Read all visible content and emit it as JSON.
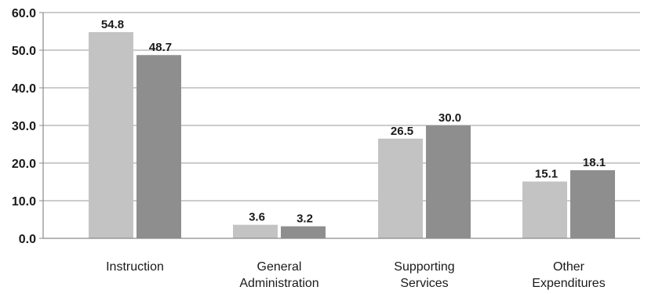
{
  "colors": {
    "series_a": "#c3c3c3",
    "series_b": "#8e8e8e",
    "grid": "#9a9a9a",
    "axis": "#8a8a8a",
    "text": "#1a1a1a"
  },
  "chart_data": {
    "type": "bar",
    "title": "",
    "xlabel": "",
    "ylabel": "",
    "categories": [
      [
        "Instruction"
      ],
      [
        "General",
        "Administration"
      ],
      [
        "Supporting",
        "Services"
      ],
      [
        "Other",
        "Expenditures"
      ]
    ],
    "series": [
      {
        "values": [
          54.8,
          3.6,
          26.5,
          15.1
        ]
      },
      {
        "values": [
          48.7,
          3.2,
          30.0,
          18.1
        ]
      }
    ],
    "data_labels_a": [
      "54.8",
      "3.6",
      "26.5",
      "15.1"
    ],
    "data_labels_b": [
      "48.7",
      "3.2",
      "30.0",
      "18.1"
    ],
    "yticks": [
      "0.0",
      "10.0",
      "20.0",
      "30.0",
      "40.0",
      "50.0",
      "60.0"
    ],
    "ylim": [
      0,
      60
    ],
    "grid": true,
    "legend": "none"
  }
}
